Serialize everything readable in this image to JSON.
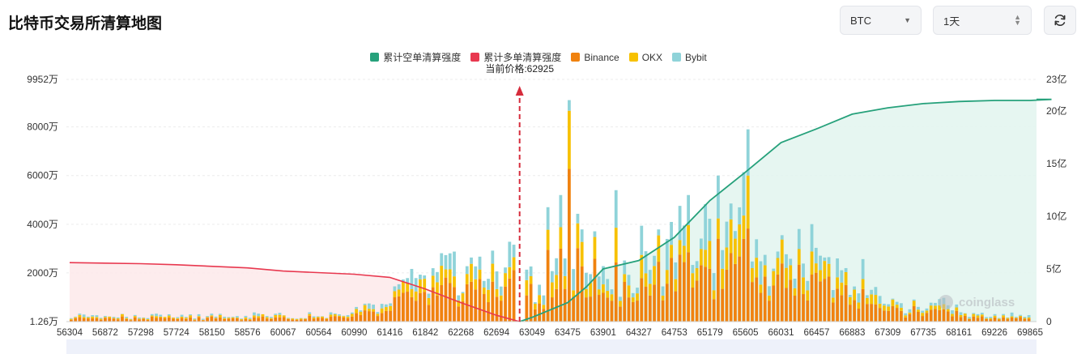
{
  "page": {
    "title": "比特币交易所清算地图"
  },
  "controls": {
    "coin": {
      "value": "BTC",
      "icon": "caret-down-icon"
    },
    "range": {
      "value": "1天",
      "icon": "updown-icon"
    },
    "refresh": {
      "icon": "refresh-icon"
    }
  },
  "colors": {
    "short": "#26a17b",
    "long": "#e8384f",
    "binance": "#f0820f",
    "okx": "#f7c100",
    "bybit": "#8fd3d9"
  },
  "legend": [
    {
      "label": "累计空单清算强度",
      "color": "#26a17b"
    },
    {
      "label": "累计多单清算强度",
      "color": "#e8384f"
    },
    {
      "label": "Binance",
      "color": "#f0820f"
    },
    {
      "label": "OKX",
      "color": "#f7c100"
    },
    {
      "label": "Bybit",
      "color": "#8fd3d9"
    }
  ],
  "watermark": "coinglass",
  "chart_data": {
    "type": "bar",
    "current_price_label": "当前价格:62925",
    "current_price": 62925,
    "xlim": [
      56304,
      70250
    ],
    "x_ticks": [
      56304,
      56872,
      57298,
      57724,
      58150,
      58576,
      60067,
      60564,
      60990,
      61416,
      61842,
      62268,
      62694,
      63049,
      63475,
      63901,
      64327,
      64753,
      65179,
      65605,
      66031,
      66457,
      66883,
      67309,
      67735,
      68161,
      69226,
      69865
    ],
    "y_left_ticks": [
      "1.26万",
      "2000万",
      "4000万",
      "6000万",
      "8000万",
      "9952万"
    ],
    "y_left_values": [
      0.0126,
      2000,
      4000,
      6000,
      8000,
      9952
    ],
    "y_left_unit": "万",
    "y_right_ticks": [
      "0",
      "5亿",
      "10亿",
      "15亿",
      "20亿",
      "23亿"
    ],
    "y_right_values": [
      0,
      5,
      10,
      15,
      20,
      23
    ],
    "y_right_unit": "亿",
    "cumulative_long_curve": [
      [
        56304,
        5.6
      ],
      [
        57298,
        5.5
      ],
      [
        57724,
        5.4
      ],
      [
        58576,
        5.1
      ],
      [
        60067,
        4.8
      ],
      [
        60990,
        4.5
      ],
      [
        61416,
        4.2
      ],
      [
        61842,
        3.1
      ],
      [
        62268,
        1.8
      ],
      [
        62694,
        0.6
      ],
      [
        62925,
        0
      ]
    ],
    "cumulative_short_curve": [
      [
        62925,
        0
      ],
      [
        63049,
        0.4
      ],
      [
        63475,
        1.8
      ],
      [
        63700,
        3.3
      ],
      [
        63901,
        5.0
      ],
      [
        64327,
        5.8
      ],
      [
        64753,
        8.0
      ],
      [
        65179,
        11.5
      ],
      [
        65605,
        14.2
      ],
      [
        66031,
        17.0
      ],
      [
        66457,
        18.3
      ],
      [
        66883,
        19.7
      ],
      [
        67309,
        20.3
      ],
      [
        67735,
        20.7
      ],
      [
        68161,
        20.9
      ],
      [
        69226,
        21.0
      ],
      [
        69865,
        21.0
      ],
      [
        70250,
        21.1
      ]
    ],
    "bar_groups": [
      {
        "price_range": [
          56304,
          58576
        ],
        "binance_approx": 120,
        "okx_approx": 60,
        "bybit_approx": 100,
        "note_max_total": 600
      },
      {
        "price_range": [
          61416,
          62694
        ],
        "max_total_approx": 3450
      },
      {
        "price_range": [
          63049,
          63901
        ],
        "max_total_approx": 9100
      },
      {
        "price_range": [
          63901,
          66031
        ],
        "max_total_approx": 7900
      },
      {
        "price_range": [
          66031,
          67309
        ],
        "max_total_approx": 4200
      },
      {
        "price_range": [
          67309,
          70250
        ],
        "max_total_approx": 1000
      }
    ]
  }
}
